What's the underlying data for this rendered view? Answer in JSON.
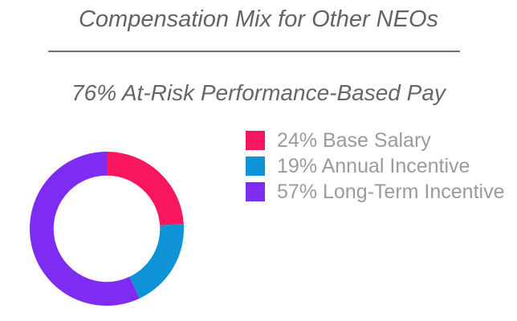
{
  "header": {
    "title": "Compensation Mix for Other NEOs",
    "subtitle": "76% At-Risk Performance-Based Pay"
  },
  "colors": {
    "background": "#ffffff",
    "title_text": "#636363",
    "subtitle_text": "#666666",
    "legend_text": "#9b9b9b",
    "divider": "#6f6f6f"
  },
  "chart_data": {
    "type": "pie",
    "subtype": "donut",
    "title": "Compensation Mix for Other NEOs",
    "subtitle": "76% At-Risk Performance-Based Pay",
    "labels": [
      "Base Salary",
      "Annual Incentive",
      "Long-Term Incentive"
    ],
    "values": [
      24,
      19,
      57
    ],
    "unit": "%",
    "colors": [
      "#F8175E",
      "#0E93D6",
      "#7E2BF2"
    ],
    "hole_ratio": 0.69,
    "start_angle": "top",
    "direction": "clockwise",
    "legend_position": "right",
    "legend_labels": [
      "24% Base Salary",
      "19% Annual Incentive",
      "57% Long-Term Incentive"
    ]
  }
}
